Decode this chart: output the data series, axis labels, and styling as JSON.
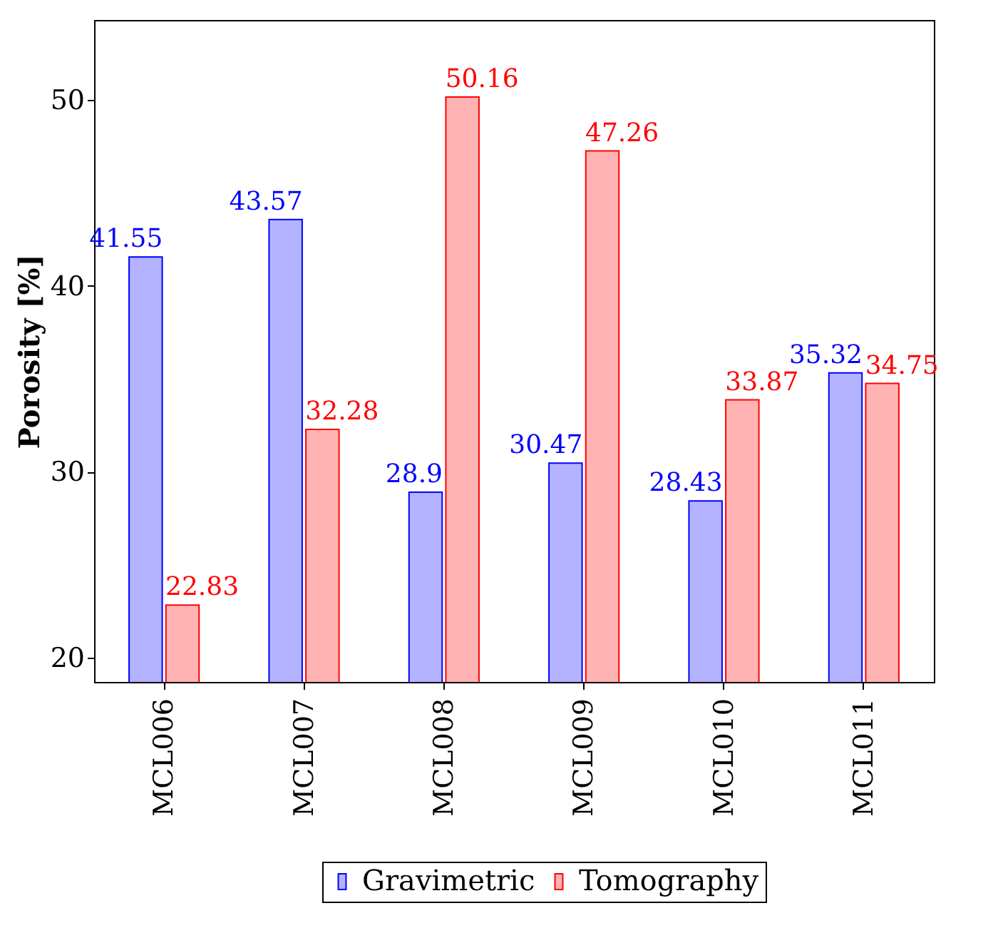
{
  "chart_data": {
    "type": "bar",
    "ylabel": "Porosity [%]",
    "categories": [
      "MCL006",
      "MCL007",
      "MCL008",
      "MCL009",
      "MCL010",
      "MCL011"
    ],
    "series": [
      {
        "name": "Gravimetric",
        "color": "#b3b3ff",
        "values": [
          41.55,
          43.57,
          28.9,
          30.47,
          28.43,
          35.32
        ]
      },
      {
        "name": "Tomography",
        "color": "#ffb3b3",
        "values": [
          22.83,
          32.28,
          50.16,
          47.26,
          33.87,
          34.75
        ]
      }
    ],
    "ylim": [
      18.7,
      54.3
    ],
    "yticks": [
      20,
      30,
      40,
      50
    ],
    "grid": false,
    "legend": "bottom",
    "data_labels": true
  }
}
